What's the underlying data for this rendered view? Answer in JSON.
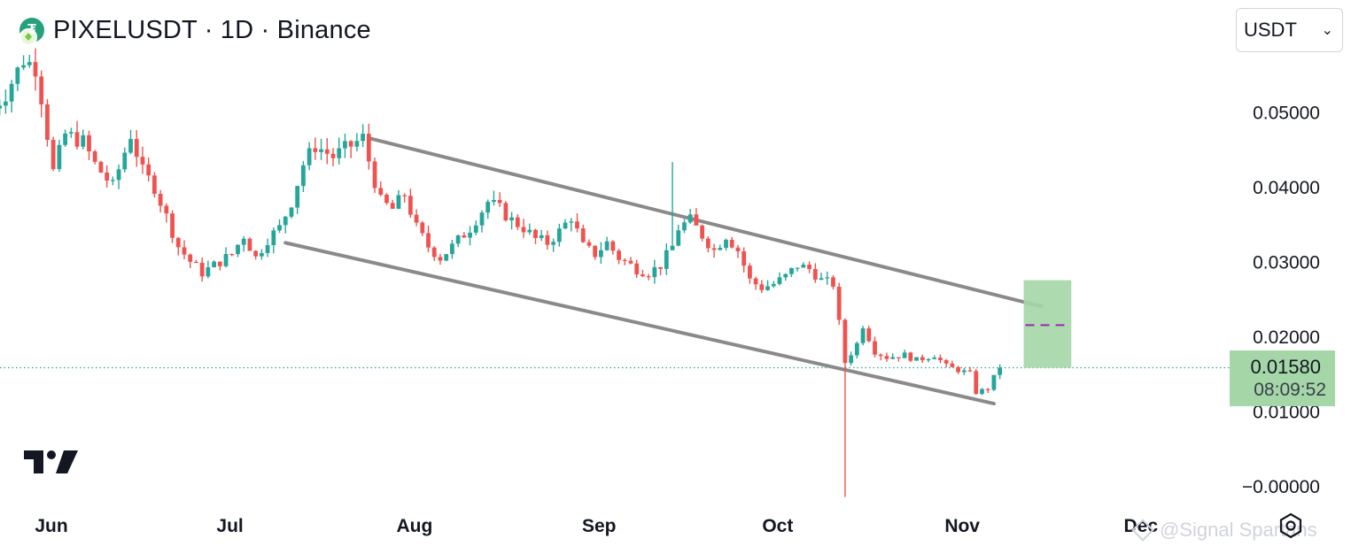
{
  "header": {
    "title": "PIXELUSDT · 1D · Binance",
    "currency": "USDT"
  },
  "price_badge": {
    "price": "0.01580",
    "countdown": "08:09:52"
  },
  "watermark": {
    "text": "@Signal Spartans"
  },
  "colors": {
    "up": "#26a69a",
    "down": "#ef5350",
    "channel": "#8a8a8a",
    "zone": "#a5d6a7",
    "target_dash": "#9c27b0",
    "last_price_line": "#26a69a"
  },
  "chart_data": {
    "type": "candlestick",
    "timeframe": "1D",
    "x_labels": [
      {
        "label": "Jun",
        "day": 0
      },
      {
        "label": "Jul",
        "day": 30
      },
      {
        "label": "Aug",
        "day": 61
      },
      {
        "label": "Sep",
        "day": 92
      },
      {
        "label": "Oct",
        "day": 122
      },
      {
        "label": "Nov",
        "day": 153
      },
      {
        "label": "Dec",
        "day": 183
      }
    ],
    "y_ticks": [
      {
        "value": 0.05,
        "label": "0.05000"
      },
      {
        "value": 0.04,
        "label": "0.04000"
      },
      {
        "value": 0.03,
        "label": "0.03000"
      },
      {
        "value": 0.02,
        "label": "0.02000"
      },
      {
        "value": 0.01,
        "label": "0.01000"
      },
      {
        "value": 0.0,
        "label": "−0.00000"
      }
    ],
    "ylim": [
      -0.002,
      0.061
    ],
    "last_price": 0.0158,
    "anchors": [
      [
        -7,
        0.0505
      ],
      [
        -5,
        0.0525
      ],
      [
        -2,
        0.057
      ],
      [
        0,
        0.056
      ],
      [
        1,
        0.052
      ],
      [
        3,
        0.042
      ],
      [
        5,
        0.047
      ],
      [
        8,
        0.046
      ],
      [
        10,
        0.043
      ],
      [
        13,
        0.04
      ],
      [
        16,
        0.047
      ],
      [
        18,
        0.042
      ],
      [
        20,
        0.04
      ],
      [
        22,
        0.036
      ],
      [
        24,
        0.032
      ],
      [
        26,
        0.03
      ],
      [
        28,
        0.0285
      ],
      [
        30,
        0.0295
      ],
      [
        33,
        0.031
      ],
      [
        35,
        0.0335
      ],
      [
        37,
        0.0305
      ],
      [
        39,
        0.033
      ],
      [
        41,
        0.0345
      ],
      [
        43,
        0.038
      ],
      [
        45,
        0.043
      ],
      [
        47,
        0.0455
      ],
      [
        50,
        0.044
      ],
      [
        53,
        0.0455
      ],
      [
        55,
        0.0465
      ],
      [
        56,
        0.0435
      ],
      [
        58,
        0.038
      ],
      [
        60,
        0.037
      ],
      [
        62,
        0.039
      ],
      [
        64,
        0.0345
      ],
      [
        66,
        0.032
      ],
      [
        68,
        0.0305
      ],
      [
        70,
        0.032
      ],
      [
        73,
        0.0345
      ],
      [
        76,
        0.038
      ],
      [
        78,
        0.037
      ],
      [
        80,
        0.0355
      ],
      [
        82,
        0.0345
      ],
      [
        84,
        0.033
      ],
      [
        86,
        0.0325
      ],
      [
        88,
        0.034
      ],
      [
        90,
        0.036
      ],
      [
        92,
        0.032
      ],
      [
        94,
        0.031
      ],
      [
        96,
        0.0325
      ],
      [
        98,
        0.0305
      ],
      [
        101,
        0.029
      ],
      [
        103,
        0.0285
      ],
      [
        105,
        0.0295
      ],
      [
        107,
        0.032
      ],
      [
        108,
        0.0345
      ],
      [
        110,
        0.0355
      ],
      [
        112,
        0.0335
      ],
      [
        114,
        0.0315
      ],
      [
        116,
        0.0335
      ],
      [
        118,
        0.0315
      ],
      [
        120,
        0.0275
      ],
      [
        122,
        0.0265
      ],
      [
        124,
        0.027
      ],
      [
        126,
        0.028
      ],
      [
        128,
        0.0295
      ],
      [
        130,
        0.029
      ],
      [
        132,
        0.0275
      ],
      [
        134,
        0.027
      ],
      [
        136,
        0.0165
      ],
      [
        138,
        0.019
      ],
      [
        139,
        0.0215
      ],
      [
        141,
        0.018
      ],
      [
        143,
        0.0172
      ],
      [
        146,
        0.0175
      ],
      [
        148,
        0.0168
      ],
      [
        151,
        0.0175
      ],
      [
        153,
        0.016
      ],
      [
        155,
        0.0155
      ],
      [
        157,
        0.015
      ],
      [
        158,
        0.0125
      ],
      [
        160,
        0.013
      ],
      [
        161,
        0.0145
      ],
      [
        162,
        0.0158
      ]
    ],
    "spikes": [
      {
        "day": 107,
        "high": 0.0433
      },
      {
        "day": 136,
        "low": -0.0015
      }
    ],
    "lines": [
      {
        "name": "upper-trendline",
        "from": {
          "day": 56,
          "value": 0.0465
        },
        "to": {
          "day": 169,
          "value": 0.024
        }
      },
      {
        "name": "lower-trendline",
        "from": {
          "day": 42,
          "value": 0.0325
        },
        "to": {
          "day": 161,
          "value": 0.011
        }
      }
    ],
    "target_zone": {
      "day_start": 166,
      "day_end": 174,
      "top": 0.0275,
      "bottom": 0.0158,
      "mid": 0.0215
    }
  }
}
